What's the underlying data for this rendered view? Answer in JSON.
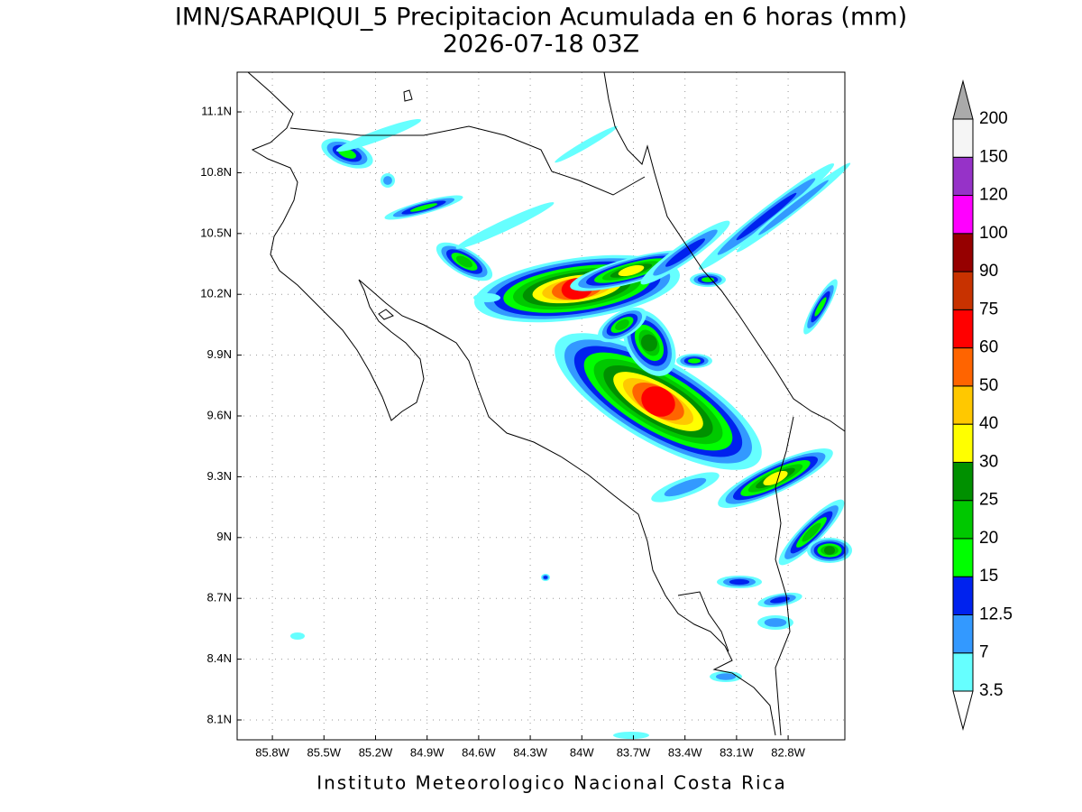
{
  "title": "IMN/SARAPIQUI_5 Precipitacion Acumulada en 6 horas (mm)",
  "subtitle": "2026-07-18 03Z",
  "map": {
    "xlim": [
      -86.005,
      -82.47
    ],
    "ylim": [
      8.002,
      11.296
    ],
    "lat_ticks": [
      {
        "value": 11.1,
        "label": "11.1N"
      },
      {
        "value": 10.8,
        "label": "10.8N"
      },
      {
        "value": 10.5,
        "label": "10.5N"
      },
      {
        "value": 10.2,
        "label": "10.2N"
      },
      {
        "value": 9.9,
        "label": "9.9N"
      },
      {
        "value": 9.6,
        "label": "9.6N"
      },
      {
        "value": 9.3,
        "label": "9.3N"
      },
      {
        "value": 9,
        "label": "9N"
      },
      {
        "value": 8.7,
        "label": "8.7N"
      },
      {
        "value": 8.4,
        "label": "8.4N"
      },
      {
        "value": 8.1,
        "label": "8.1N"
      }
    ],
    "lon_ticks": [
      {
        "value": -85.8,
        "label": "85.8W"
      },
      {
        "value": -85.5,
        "label": "85.5W"
      },
      {
        "value": -85.2,
        "label": "85.2W"
      },
      {
        "value": -84.9,
        "label": "84.9W"
      },
      {
        "value": -84.6,
        "label": "84.6W"
      },
      {
        "value": -84.3,
        "label": "84.3W"
      },
      {
        "value": -84,
        "label": "84W"
      },
      {
        "value": -83.7,
        "label": "83.7W"
      },
      {
        "value": -83.4,
        "label": "83.4W"
      },
      {
        "value": -83.1,
        "label": "83.1W"
      },
      {
        "value": -82.8,
        "label": "82.8W"
      }
    ]
  },
  "colorbar": {
    "levels": [
      3.5,
      7,
      12.5,
      15,
      20,
      25,
      30,
      40,
      50,
      60,
      75,
      90,
      100,
      120,
      150,
      200
    ],
    "colors": [
      "#ffffff",
      "#66ffff",
      "#3399ff",
      "#0022ee",
      "#00ff00",
      "#00c800",
      "#009000",
      "#ffff00",
      "#ffc800",
      "#ff6400",
      "#ff0000",
      "#c83200",
      "#960000",
      "#ff00ff",
      "#9632c8",
      "#f5f5f5",
      "#aaaaaa"
    ]
  },
  "footer": "Instituto Meteorologico Nacional Costa Rica"
}
